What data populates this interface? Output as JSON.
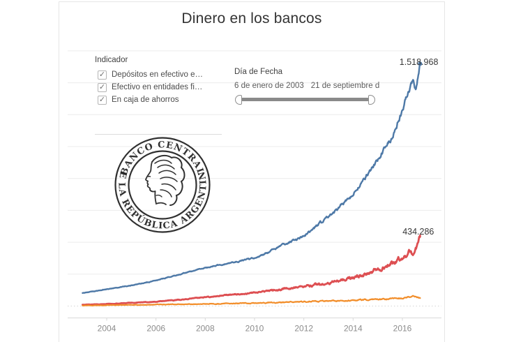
{
  "title": "Dinero en los bancos",
  "legend": {
    "title": "Indicador",
    "check_glyph": "✓",
    "items": [
      {
        "label": "Depósitos en efectivo e…",
        "checked": true
      },
      {
        "label": "Efectivo en entidades fi…",
        "checked": true
      },
      {
        "label": "En caja de ahorros",
        "checked": true
      }
    ]
  },
  "slider": {
    "title": "Día de Fecha",
    "start_label": "6 de enero de 2003",
    "end_label": "21 de septiembre d"
  },
  "logo": {
    "top_text": "· BANCO CENTRAL ·",
    "bottom_text": "DE LA REPÚBLICA ARGENTINA"
  },
  "colors": {
    "series_blue": "#4e79a7",
    "series_red": "#dd4f52",
    "series_orange": "#f28e2b",
    "grid": "#ececec",
    "zero_line": "#d4d4d4",
    "axis": "#d9d9d9",
    "tick_label": "#8c8c8c",
    "data_label": "#383838"
  },
  "chart_data": {
    "type": "line",
    "title": "Dinero en los bancos",
    "xlabel": "",
    "ylabel": "",
    "grid": "horizontal",
    "legend_position": "top-left",
    "x_domain": [
      2002.415,
      2017.585
    ],
    "y_domain": [
      0,
      1600000
    ],
    "y_gridline_step": 200000,
    "x_ticks": [
      "2004",
      "2006",
      "2008",
      "2010",
      "2012",
      "2014",
      "2016"
    ],
    "x_tick_years": [
      2004,
      2006,
      2008,
      2010,
      2012,
      2014,
      2016
    ],
    "series": [
      {
        "name": "Depósitos en efectivo e…",
        "color": "#4e79a7",
        "end_label": "1.518.968",
        "end_value": 1518968,
        "points": [
          [
            2003.02,
            82000
          ],
          [
            2003.5,
            93000
          ],
          [
            2004,
            105000
          ],
          [
            2004.5,
            117000
          ],
          [
            2005,
            130000
          ],
          [
            2005.5,
            144000
          ],
          [
            2006,
            160000
          ],
          [
            2006.5,
            180000
          ],
          [
            2007,
            200000
          ],
          [
            2007.5,
            220000
          ],
          [
            2008,
            240000
          ],
          [
            2008.5,
            255000
          ],
          [
            2009,
            268000
          ],
          [
            2009.5,
            283000
          ],
          [
            2010,
            300000
          ],
          [
            2010.5,
            332000
          ],
          [
            2011,
            370000
          ],
          [
            2011.5,
            405000
          ],
          [
            2012,
            440000
          ],
          [
            2012.5,
            495000
          ],
          [
            2013,
            560000
          ],
          [
            2013.5,
            625000
          ],
          [
            2014,
            700000
          ],
          [
            2014.5,
            800000
          ],
          [
            2015,
            920000
          ],
          [
            2015.5,
            1040000
          ],
          [
            2015.75,
            1120000
          ],
          [
            2016,
            1230000
          ],
          [
            2016.2,
            1320000
          ],
          [
            2016.35,
            1390000
          ],
          [
            2016.45,
            1405000
          ],
          [
            2016.55,
            1370000
          ],
          [
            2016.62,
            1430000
          ],
          [
            2016.68,
            1490000
          ],
          [
            2016.72,
            1518968
          ]
        ]
      },
      {
        "name": "Efectivo en entidades fi…",
        "color": "#dd4f52",
        "end_label": "434.286",
        "end_value": 434286,
        "points": [
          [
            2003.02,
            8000
          ],
          [
            2004,
            13000
          ],
          [
            2005,
            20000
          ],
          [
            2006,
            28000
          ],
          [
            2007,
            40000
          ],
          [
            2008,
            55000
          ],
          [
            2009,
            70000
          ],
          [
            2010,
            85000
          ],
          [
            2011,
            103000
          ],
          [
            2012,
            121000
          ],
          [
            2013,
            145000
          ],
          [
            2014,
            176000
          ],
          [
            2014.5,
            200000
          ],
          [
            2015,
            230000
          ],
          [
            2015.5,
            258000
          ],
          [
            2016,
            305000
          ],
          [
            2016.3,
            345000
          ],
          [
            2016.45,
            330000
          ],
          [
            2016.55,
            360000
          ],
          [
            2016.65,
            405000
          ],
          [
            2016.72,
            434286
          ]
        ]
      },
      {
        "name": "En caja de ahorros",
        "color": "#f28e2b",
        "end_label": "",
        "end_value": 50000,
        "points": [
          [
            2003.02,
            3000
          ],
          [
            2004,
            5000
          ],
          [
            2005,
            7000
          ],
          [
            2006,
            9000
          ],
          [
            2007,
            11000
          ],
          [
            2008,
            13500
          ],
          [
            2009,
            16000
          ],
          [
            2010,
            19000
          ],
          [
            2011,
            23000
          ],
          [
            2012,
            27000
          ],
          [
            2013,
            32000
          ],
          [
            2014,
            37000
          ],
          [
            2015,
            43000
          ],
          [
            2015.7,
            47000
          ],
          [
            2016,
            52000
          ],
          [
            2016.25,
            60000
          ],
          [
            2016.4,
            63000
          ],
          [
            2016.55,
            56000
          ],
          [
            2016.72,
            50000
          ]
        ]
      }
    ]
  }
}
